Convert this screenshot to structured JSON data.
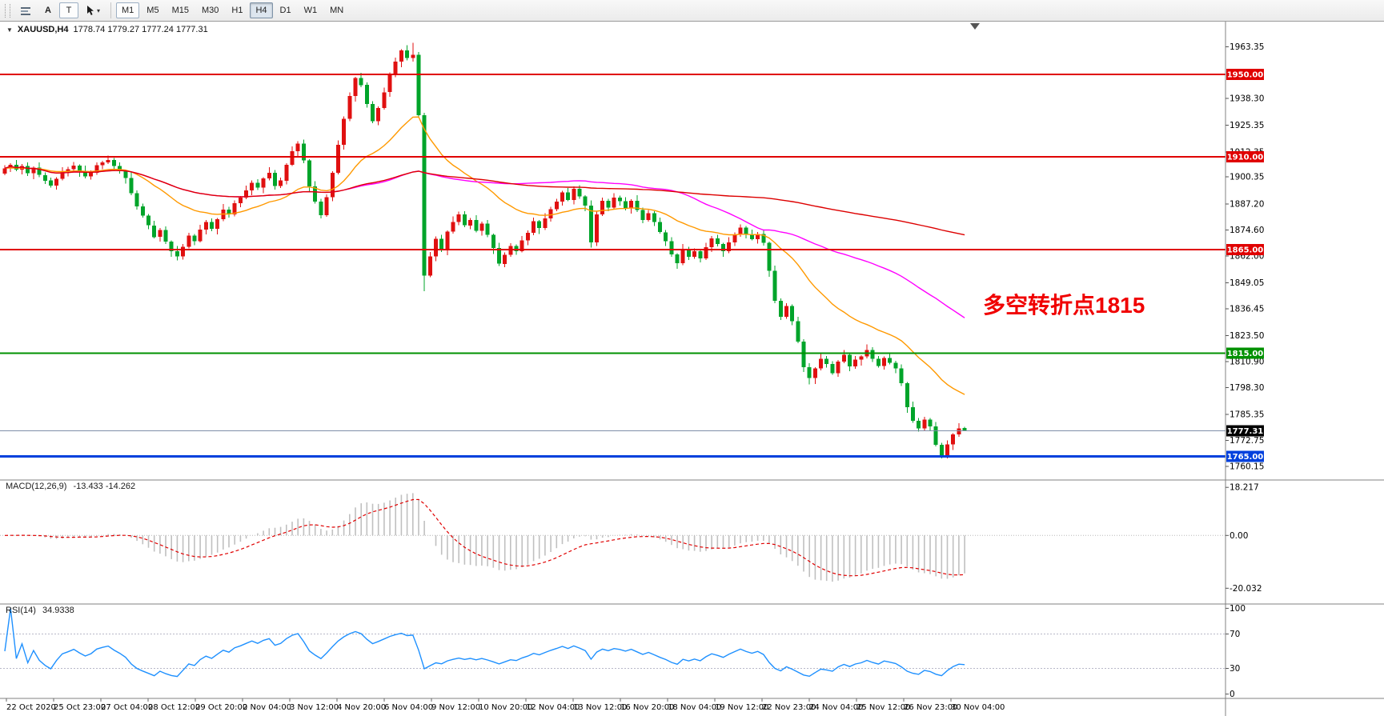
{
  "toolbar": {
    "tools": [
      {
        "name": "chart-bars",
        "label": ""
      },
      {
        "name": "font",
        "label": "A"
      },
      {
        "name": "text",
        "label": "T"
      },
      {
        "name": "cursor",
        "label": ""
      }
    ],
    "timeframes": [
      "M1",
      "M5",
      "M15",
      "M30",
      "H1",
      "H4",
      "D1",
      "W1",
      "MN"
    ],
    "active_timeframe": "H4"
  },
  "chart_header": {
    "dropdown_marker": "▼",
    "symbol": "XAUUSD,H4",
    "ohlc": "1778.74 1779.27 1777.24 1777.31"
  },
  "annotation": {
    "text": "多空转折点1815",
    "color": "#f00000"
  },
  "levels": [
    {
      "label": "1950.00",
      "price": 1950.0,
      "color": "#e00000",
      "line_width": 2
    },
    {
      "label": "1910.00",
      "price": 1910.0,
      "color": "#e00000",
      "line_width": 2
    },
    {
      "label": "1865.00",
      "price": 1865.0,
      "color": "#e00000",
      "line_width": 2
    },
    {
      "label": "1815.00",
      "price": 1815.0,
      "color": "#009100",
      "line_width": 2
    },
    {
      "label": "1765.00",
      "price": 1765.0,
      "color": "#0040dd",
      "line_width": 3
    }
  ],
  "current_price": {
    "label": "1777.31",
    "value": 1777.31,
    "line_color": "#7f8fa8",
    "box_color": "#000000"
  },
  "price_axis": {
    "tick_labels": [
      "1963.35",
      "1938.30",
      "1925.35",
      "1912.35",
      "1900.35",
      "1887.20",
      "1874.60",
      "1862.00",
      "1849.05",
      "1836.45",
      "1823.50",
      "1810.90",
      "1798.30",
      "1785.35",
      "1772.75",
      "1760.15"
    ],
    "tick_values": [
      1963.35,
      1938.3,
      1925.35,
      1912.35,
      1900.35,
      1887.2,
      1874.6,
      1862.0,
      1849.05,
      1836.45,
      1823.5,
      1810.9,
      1798.3,
      1785.35,
      1772.75,
      1760.15
    ]
  },
  "indicators": {
    "macd": {
      "title": "MACD(12,26,9)",
      "values": "-13.433 -14.262",
      "fast": 12,
      "slow": 26,
      "signal": 9,
      "tick_labels": [
        "18.217",
        "0.00",
        "-20.032"
      ],
      "tick_values": [
        18.217,
        0,
        -20.032
      ],
      "histogram_color": "#c0c0c0",
      "signal_color": "#e00000"
    },
    "rsi": {
      "title": "RSI(14)",
      "value": "34.9338",
      "period": 14,
      "tick_labels": [
        "100",
        "70",
        "30",
        "0"
      ],
      "tick_values": [
        100,
        70,
        30,
        0
      ],
      "levels": [
        70,
        30
      ],
      "line_color": "#1e90ff",
      "level_color": "#b8b8c8"
    }
  },
  "time_axis": {
    "labels": [
      "22 Oct 2020",
      "25 Oct 23:00",
      "27 Oct 04:00",
      "28 Oct 12:00",
      "29 Oct 20:00",
      "2 Nov 04:00",
      "3 Nov 12:00",
      "4 Nov 20:00",
      "6 Nov 04:00",
      "9 Nov 12:00",
      "10 Nov 20:00",
      "12 Nov 04:00",
      "13 Nov 12:00",
      "16 Nov 20:00",
      "18 Nov 04:00",
      "19 Nov 12:00",
      "22 Nov 23:00",
      "24 Nov 04:00",
      "25 Nov 12:00",
      "26 Nov 23:00",
      "30 Nov 04:00"
    ]
  },
  "chart_data": {
    "type": "candlestick",
    "symbol": "XAUUSD",
    "timeframe": "H4",
    "title": "XAUUSD,H4",
    "up_color": "#e01010",
    "down_color": "#00a42a",
    "y_range": [
      1753.5,
      1975.5
    ],
    "ma_lines": [
      {
        "name": "ma-fast-orange",
        "type": "ema",
        "period": 25,
        "color": "#ff9900"
      },
      {
        "name": "ma-mid-magenta",
        "type": "sma",
        "period": 60,
        "color": "#ff00ff"
      },
      {
        "name": "ma-slow-red",
        "type": "sma",
        "period": 200,
        "color": "#dd0000"
      }
    ],
    "candles": [
      [
        1902.0,
        1905.9,
        1901.1,
        1904.5
      ],
      [
        1904.5,
        1907.0,
        1902.6,
        1906.2
      ],
      [
        1906.2,
        1908.4,
        1903.1,
        1903.8
      ],
      [
        1903.8,
        1906.6,
        1901.5,
        1905.5
      ],
      [
        1905.5,
        1907.3,
        1900.8,
        1902.0
      ],
      [
        1902.0,
        1905.3,
        1899.2,
        1904.7
      ],
      [
        1904.7,
        1907.3,
        1900.2,
        1901.2
      ],
      [
        1901.2,
        1902.5,
        1896.9,
        1898.5
      ],
      [
        1898.5,
        1899.9,
        1895.1,
        1896.0
      ],
      [
        1896.0,
        1900.1,
        1894.1,
        1899.3
      ],
      [
        1899.3,
        1905.0,
        1898.6,
        1902.8
      ],
      [
        1902.8,
        1905.2,
        1900.5,
        1904.1
      ],
      [
        1904.1,
        1907.6,
        1902.9,
        1905.8
      ],
      [
        1905.8,
        1906.4,
        1900.4,
        1903.2
      ],
      [
        1903.2,
        1905.8,
        1899.5,
        1900.5
      ],
      [
        1900.5,
        1903.5,
        1898.9,
        1902.2
      ],
      [
        1902.2,
        1907.3,
        1901.3,
        1905.9
      ],
      [
        1905.9,
        1908.1,
        1904.0,
        1907.3
      ],
      [
        1907.3,
        1910.6,
        1906.6,
        1908.4
      ],
      [
        1908.4,
        1909.5,
        1903.3,
        1905.6
      ],
      [
        1905.6,
        1907.4,
        1901.9,
        1903.1
      ],
      [
        1903.1,
        1903.7,
        1897.0,
        1899.8
      ],
      [
        1899.8,
        1902.4,
        1891.4,
        1892.4
      ],
      [
        1892.4,
        1893.7,
        1884.4,
        1886.0
      ],
      [
        1886.0,
        1887.4,
        1880.6,
        1881.5
      ],
      [
        1881.5,
        1882.3,
        1874.9,
        1876.8
      ],
      [
        1876.8,
        1879.0,
        1870.5,
        1871.2
      ],
      [
        1871.2,
        1875.6,
        1868.9,
        1874.5
      ],
      [
        1874.5,
        1876.3,
        1867.7,
        1868.9
      ],
      [
        1868.9,
        1869.5,
        1861.5,
        1864.3
      ],
      [
        1864.3,
        1866.9,
        1859.8,
        1861.8
      ],
      [
        1861.8,
        1867.8,
        1860.2,
        1866.5
      ],
      [
        1866.5,
        1873.3,
        1865.6,
        1871.9
      ],
      [
        1871.9,
        1872.7,
        1867.3,
        1869.2
      ],
      [
        1869.2,
        1877.0,
        1868.5,
        1874.8
      ],
      [
        1874.8,
        1879.5,
        1872.5,
        1878.4
      ],
      [
        1878.4,
        1880.2,
        1874.0,
        1875.2
      ],
      [
        1875.2,
        1880.4,
        1872.4,
        1879.8
      ],
      [
        1879.8,
        1887.1,
        1878.8,
        1884.5
      ],
      [
        1884.5,
        1885.8,
        1880.5,
        1882.1
      ],
      [
        1882.1,
        1889.0,
        1881.2,
        1887.6
      ],
      [
        1887.6,
        1891.0,
        1885.7,
        1890.2
      ],
      [
        1890.2,
        1896.0,
        1889.5,
        1893.8
      ],
      [
        1893.8,
        1898.5,
        1891.5,
        1897.4
      ],
      [
        1897.4,
        1899.2,
        1893.9,
        1895.1
      ],
      [
        1895.1,
        1900.2,
        1892.3,
        1899.6
      ],
      [
        1899.6,
        1904.9,
        1898.6,
        1902.3
      ],
      [
        1902.3,
        1903.6,
        1894.2,
        1895.8
      ],
      [
        1895.8,
        1899.9,
        1894.9,
        1898.5
      ],
      [
        1898.5,
        1907.0,
        1896.6,
        1906.2
      ],
      [
        1906.2,
        1915.0,
        1905.5,
        1912.8
      ],
      [
        1912.8,
        1917.6,
        1910.5,
        1916.5
      ],
      [
        1916.5,
        1918.3,
        1907.0,
        1908.2
      ],
      [
        1908.2,
        1908.8,
        1892.8,
        1895.6
      ],
      [
        1895.6,
        1898.2,
        1887.4,
        1888.4
      ],
      [
        1888.4,
        1889.7,
        1880.2,
        1881.8
      ],
      [
        1881.8,
        1891.9,
        1880.9,
        1890.5
      ],
      [
        1890.5,
        1903.0,
        1888.6,
        1902.2
      ],
      [
        1902.2,
        1918.0,
        1901.5,
        1915.8
      ],
      [
        1915.8,
        1929.5,
        1913.5,
        1928.4
      ],
      [
        1928.4,
        1941.3,
        1927.2,
        1939.5
      ],
      [
        1939.5,
        1948.8,
        1936.7,
        1948.2
      ],
      [
        1948.2,
        1950.8,
        1943.8,
        1944.8
      ],
      [
        1944.8,
        1946.1,
        1933.9,
        1935.5
      ],
      [
        1935.5,
        1936.9,
        1926.3,
        1927.2
      ],
      [
        1927.2,
        1934.4,
        1925.3,
        1933.6
      ],
      [
        1933.6,
        1943.5,
        1932.9,
        1941.3
      ],
      [
        1941.3,
        1950.9,
        1939.0,
        1949.8
      ],
      [
        1949.8,
        1958.0,
        1948.6,
        1956.2
      ],
      [
        1956.2,
        1962.1,
        1953.4,
        1961.5
      ],
      [
        1961.5,
        1964.1,
        1956.8,
        1957.8
      ],
      [
        1957.8,
        1965.3,
        1956.2,
        1959.4
      ],
      [
        1959.4,
        1960.8,
        1929.3,
        1930.2
      ],
      [
        1930.2,
        1931.4,
        1845.0,
        1852.5
      ],
      [
        1852.5,
        1864.0,
        1851.8,
        1861.8
      ],
      [
        1861.8,
        1871.5,
        1859.5,
        1870.4
      ],
      [
        1870.4,
        1872.2,
        1864.0,
        1865.2
      ],
      [
        1865.2,
        1874.4,
        1862.4,
        1873.8
      ],
      [
        1873.8,
        1881.1,
        1872.8,
        1878.5
      ],
      [
        1878.5,
        1883.5,
        1876.9,
        1882.2
      ],
      [
        1882.2,
        1883.6,
        1875.9,
        1876.8
      ],
      [
        1876.8,
        1880.3,
        1874.9,
        1879.5
      ],
      [
        1879.5,
        1881.7,
        1873.5,
        1874.2
      ],
      [
        1874.2,
        1878.7,
        1871.9,
        1877.6
      ],
      [
        1877.6,
        1879.4,
        1871.1,
        1872.3
      ],
      [
        1872.3,
        1872.9,
        1863.0,
        1865.8
      ],
      [
        1865.8,
        1868.4,
        1857.2,
        1858.2
      ],
      [
        1858.2,
        1863.8,
        1856.6,
        1862.5
      ],
      [
        1862.5,
        1868.2,
        1861.6,
        1866.8
      ],
      [
        1866.8,
        1867.6,
        1862.5,
        1864.4
      ],
      [
        1864.4,
        1871.7,
        1863.7,
        1869.5
      ],
      [
        1869.5,
        1874.3,
        1867.2,
        1873.2
      ],
      [
        1873.2,
        1880.6,
        1872.0,
        1878.8
      ],
      [
        1878.8,
        1879.4,
        1872.7,
        1875.5
      ],
      [
        1875.5,
        1882.8,
        1874.5,
        1880.2
      ],
      [
        1880.2,
        1885.9,
        1878.6,
        1884.6
      ],
      [
        1884.6,
        1889.7,
        1883.7,
        1888.3
      ],
      [
        1888.3,
        1893.6,
        1886.4,
        1892.8
      ],
      [
        1892.8,
        1895.0,
        1888.5,
        1889.2
      ],
      [
        1889.2,
        1895.6,
        1886.9,
        1894.5
      ],
      [
        1894.5,
        1896.3,
        1889.6,
        1890.8
      ],
      [
        1890.8,
        1891.4,
        1883.6,
        1886.4
      ],
      [
        1886.4,
        1889.0,
        1866.0,
        1868.5
      ],
      [
        1868.5,
        1883.5,
        1866.9,
        1882.2
      ],
      [
        1882.2,
        1890.2,
        1881.3,
        1888.8
      ],
      [
        1888.8,
        1889.6,
        1883.6,
        1885.5
      ],
      [
        1885.5,
        1892.4,
        1884.8,
        1890.2
      ],
      [
        1890.2,
        1891.3,
        1886.3,
        1888.6
      ],
      [
        1888.6,
        1890.4,
        1884.1,
        1885.3
      ],
      [
        1885.3,
        1889.4,
        1882.5,
        1888.8
      ],
      [
        1888.8,
        1891.4,
        1883.2,
        1884.2
      ],
      [
        1884.2,
        1885.5,
        1877.9,
        1879.5
      ],
      [
        1879.5,
        1884.2,
        1878.6,
        1882.8
      ],
      [
        1882.8,
        1883.6,
        1876.5,
        1878.4
      ],
      [
        1878.4,
        1880.6,
        1872.8,
        1873.5
      ],
      [
        1873.5,
        1874.6,
        1866.9,
        1869.2
      ],
      [
        1869.2,
        1871.0,
        1861.6,
        1862.8
      ],
      [
        1862.8,
        1863.4,
        1855.7,
        1858.5
      ],
      [
        1858.5,
        1867.8,
        1857.5,
        1865.2
      ],
      [
        1865.2,
        1866.5,
        1860.0,
        1861.6
      ],
      [
        1861.6,
        1865.7,
        1860.7,
        1864.3
      ],
      [
        1864.3,
        1865.1,
        1858.9,
        1860.8
      ],
      [
        1860.8,
        1868.4,
        1860.1,
        1866.2
      ],
      [
        1866.2,
        1871.6,
        1863.9,
        1870.5
      ],
      [
        1870.5,
        1872.3,
        1866.6,
        1867.8
      ],
      [
        1867.8,
        1868.4,
        1861.6,
        1864.4
      ],
      [
        1864.4,
        1871.1,
        1863.4,
        1868.5
      ],
      [
        1868.5,
        1873.5,
        1866.9,
        1872.2
      ],
      [
        1872.2,
        1877.2,
        1871.3,
        1875.8
      ],
      [
        1875.8,
        1876.6,
        1870.6,
        1872.5
      ],
      [
        1872.5,
        1874.7,
        1869.5,
        1870.2
      ],
      [
        1870.2,
        1873.7,
        1867.9,
        1872.6
      ],
      [
        1872.6,
        1874.4,
        1867.1,
        1868.3
      ],
      [
        1868.3,
        1868.9,
        1852.0,
        1854.8
      ],
      [
        1854.8,
        1857.4,
        1839.2,
        1840.2
      ],
      [
        1840.2,
        1841.5,
        1830.9,
        1832.5
      ],
      [
        1832.5,
        1839.2,
        1831.6,
        1837.8
      ],
      [
        1837.8,
        1838.6,
        1828.5,
        1830.4
      ],
      [
        1830.4,
        1832.6,
        1819.8,
        1820.5
      ],
      [
        1820.5,
        1821.6,
        1805.9,
        1808.2
      ],
      [
        1808.2,
        1810.0,
        1799.8,
        1802.8
      ],
      [
        1802.8,
        1808.1,
        1800.0,
        1807.5
      ],
      [
        1807.5,
        1814.8,
        1806.5,
        1812.2
      ],
      [
        1812.2,
        1813.5,
        1808.0,
        1809.6
      ],
      [
        1809.6,
        1811.0,
        1804.4,
        1805.3
      ],
      [
        1805.3,
        1811.6,
        1803.4,
        1810.8
      ],
      [
        1810.8,
        1816.4,
        1810.1,
        1814.2
      ],
      [
        1814.2,
        1815.3,
        1806.2,
        1808.5
      ],
      [
        1808.5,
        1813.6,
        1807.3,
        1811.8
      ],
      [
        1811.8,
        1814.0,
        1809.0,
        1813.4
      ],
      [
        1813.4,
        1819.1,
        1812.4,
        1816.5
      ],
      [
        1816.5,
        1817.8,
        1810.6,
        1812.2
      ],
      [
        1812.2,
        1813.6,
        1807.9,
        1808.8
      ],
      [
        1808.8,
        1813.3,
        1806.9,
        1812.5
      ],
      [
        1812.5,
        1814.7,
        1809.5,
        1810.2
      ],
      [
        1810.2,
        1811.3,
        1805.3,
        1807.6
      ],
      [
        1807.6,
        1809.4,
        1799.1,
        1800.3
      ],
      [
        1800.3,
        1800.9,
        1786.0,
        1788.8
      ],
      [
        1788.8,
        1791.4,
        1781.2,
        1782.2
      ],
      [
        1782.2,
        1783.5,
        1776.9,
        1778.5
      ],
      [
        1778.5,
        1784.2,
        1777.6,
        1782.8
      ],
      [
        1782.8,
        1783.6,
        1777.5,
        1779.4
      ],
      [
        1779.4,
        1781.6,
        1769.8,
        1770.5
      ],
      [
        1770.5,
        1771.6,
        1764.0,
        1765.2
      ],
      [
        1765.2,
        1772.6,
        1764.0,
        1770.8
      ],
      [
        1770.8,
        1776.1,
        1768.0,
        1775.5
      ],
      [
        1775.5,
        1781.1,
        1774.5,
        1778.5
      ],
      [
        1778.74,
        1779.27,
        1777.24,
        1777.31
      ]
    ]
  }
}
